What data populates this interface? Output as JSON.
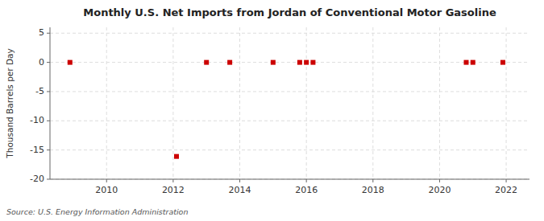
{
  "chart_data": {
    "type": "scatter",
    "title": "Monthly U.S. Net Imports from Jordan of Conventional Motor Gasoline",
    "ylabel": "Thousand Barrels per Day",
    "annotations": [
      "Source: U.S. Energy Information Administration"
    ],
    "x": [
      2008.9,
      2012.1,
      2013.0,
      2013.7,
      2015.0,
      2015.8,
      2016.0,
      2016.2,
      2020.8,
      2021.0,
      2021.9
    ],
    "values": [
      0,
      -16.1,
      0,
      0,
      0,
      0,
      0,
      0,
      0,
      0,
      0
    ],
    "color": "#cc0000",
    "marker": "square",
    "xlim": [
      2008.3,
      2022.7
    ],
    "ylim": [
      -20,
      6
    ],
    "xticks": [
      2010,
      2012,
      2014,
      2016,
      2018,
      2020,
      2022
    ],
    "yticks": [
      5,
      0,
      -5,
      -10,
      -15,
      -20
    ],
    "grid": true
  }
}
